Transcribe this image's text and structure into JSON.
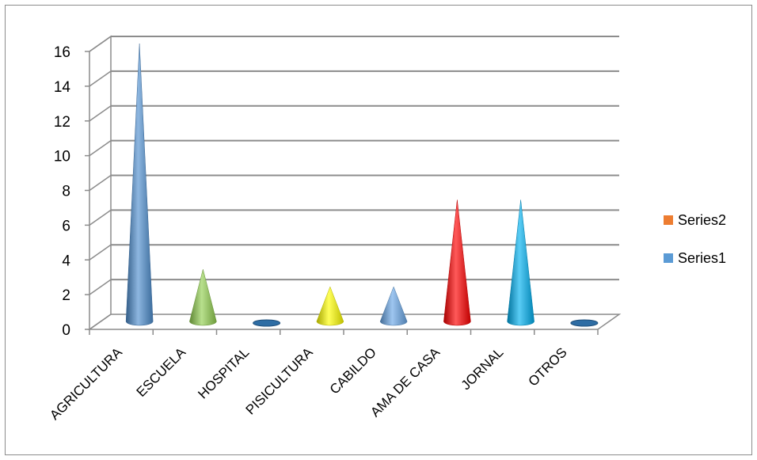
{
  "chart_data": {
    "type": "bar",
    "style": "3d-cone",
    "categories": [
      "AGRICULTURA",
      "ESCUELA",
      "HOSPITAL",
      "PISICULTURA",
      "CABILDO",
      "AMA DE CASA",
      "JORNAL",
      "OTROS"
    ],
    "series": [
      {
        "name": "Series1",
        "color": "#5b9bd5",
        "values": [
          16,
          3,
          0,
          2,
          2,
          7,
          7,
          0
        ],
        "point_colors": [
          "#4f8fd0",
          "#92d050",
          "#2e6da4",
          "#ffff00",
          "#6aa8e8",
          "#ff0000",
          "#00b0f0",
          "#2e6da4"
        ]
      },
      {
        "name": "Series2",
        "color": "#ed7d31",
        "values": [
          0,
          0,
          0,
          0,
          0,
          0,
          0,
          0
        ]
      }
    ],
    "yticks": [
      "0",
      "2",
      "4",
      "6",
      "8",
      "10",
      "12",
      "14",
      "16"
    ],
    "ylim": [
      0,
      16
    ],
    "grid": true,
    "legend_position": "right",
    "legend": [
      "Series2",
      "Series1"
    ],
    "title": "",
    "xlabel": "",
    "ylabel": ""
  }
}
